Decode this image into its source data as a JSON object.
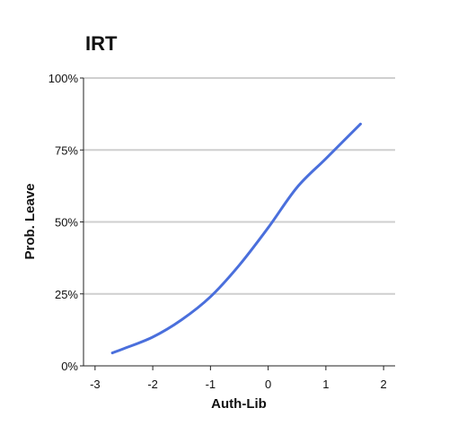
{
  "chart_data": {
    "type": "line",
    "title": "IRT",
    "xlabel": "Auth-Lib",
    "ylabel": "Prob. Leave",
    "xlim": [
      -3.2,
      2.2
    ],
    "ylim": [
      0,
      1
    ],
    "x_ticks": [
      -3,
      -2,
      -1,
      0,
      1,
      2
    ],
    "x_tick_labels": [
      "-3",
      "-2",
      "-1",
      "0",
      "1",
      "2"
    ],
    "y_ticks": [
      0,
      0.25,
      0.5,
      0.75,
      1
    ],
    "y_tick_labels": [
      "0%",
      "25%",
      "50%",
      "75%",
      "100%"
    ],
    "grid": "horizontal",
    "legend": "none",
    "colors": {
      "line": "#4a6fdc"
    },
    "series": [
      {
        "x": [
          -2.7,
          -2.5,
          -2.0,
          -1.5,
          -1.0,
          -0.5,
          0.0,
          0.5,
          1.0,
          1.6
        ],
        "y": [
          0.045,
          0.06,
          0.1,
          0.16,
          0.24,
          0.35,
          0.48,
          0.62,
          0.72,
          0.84
        ]
      }
    ]
  }
}
